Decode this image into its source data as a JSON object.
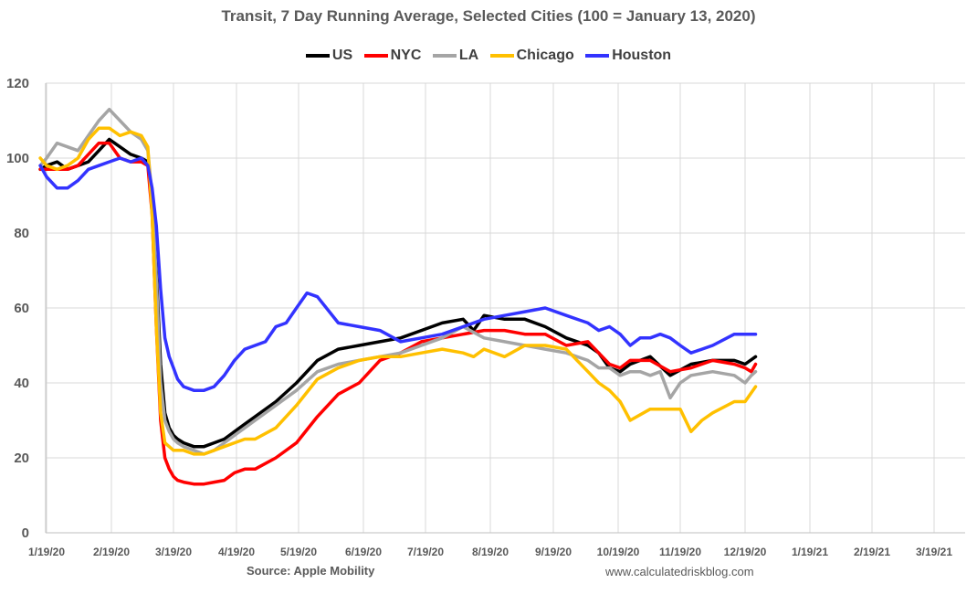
{
  "chart_data": {
    "type": "line",
    "title": "Transit, 7 Day Running Average, Selected Cities (100 = January 13, 2020)",
    "xlabel": "",
    "ylabel": "",
    "ylim": [
      0,
      120
    ],
    "yticks": [
      "0",
      "20",
      "40",
      "60",
      "80",
      "100",
      "120"
    ],
    "x_tick_labels": [
      "1/19/20",
      "2/19/20",
      "3/19/20",
      "4/19/20",
      "5/19/20",
      "6/19/20",
      "7/19/20",
      "8/19/20",
      "9/19/20",
      "10/19/20",
      "11/19/20",
      "12/19/20",
      "1/19/21",
      "2/19/21",
      "3/19/21"
    ],
    "grid": true,
    "legend_position": "top",
    "x_units": "days since 1/19/20",
    "series": [
      {
        "name": "US",
        "color": "#000000",
        "x": [
          -3,
          0,
          5,
          10,
          15,
          20,
          25,
          30,
          35,
          40,
          45,
          48,
          50,
          52,
          54,
          56,
          58,
          60,
          62,
          65,
          70,
          75,
          80,
          85,
          90,
          95,
          100,
          110,
          120,
          130,
          140,
          150,
          160,
          170,
          180,
          190,
          200,
          205,
          210,
          220,
          230,
          240,
          250,
          260,
          265,
          270,
          275,
          280,
          285,
          290,
          300,
          310,
          320,
          330,
          335,
          340
        ],
        "values": [
          97,
          98,
          99,
          97,
          98,
          99,
          102,
          105,
          103,
          101,
          100,
          99,
          90,
          70,
          45,
          32,
          28,
          26,
          25,
          24,
          23,
          23,
          24,
          25,
          27,
          29,
          31,
          35,
          40,
          46,
          49,
          50,
          51,
          52,
          54,
          56,
          57,
          54,
          58,
          57,
          57,
          55,
          52,
          50,
          48,
          44,
          43,
          45,
          46,
          47,
          42,
          45,
          46,
          46,
          45,
          47
        ]
      },
      {
        "name": "NYC",
        "color": "#ff0000",
        "x": [
          -3,
          0,
          5,
          10,
          15,
          20,
          25,
          30,
          35,
          40,
          45,
          48,
          50,
          52,
          54,
          56,
          58,
          60,
          62,
          65,
          70,
          75,
          80,
          85,
          90,
          95,
          100,
          110,
          120,
          130,
          140,
          150,
          160,
          170,
          180,
          190,
          200,
          210,
          220,
          230,
          240,
          250,
          260,
          265,
          270,
          275,
          280,
          285,
          290,
          300,
          310,
          320,
          330,
          335,
          338,
          340
        ],
        "values": [
          97,
          97,
          97,
          97,
          98,
          101,
          104,
          104,
          100,
          99,
          99,
          98,
          85,
          55,
          30,
          20,
          17,
          15,
          14,
          13.5,
          13,
          13,
          13.5,
          14,
          16,
          17,
          17,
          20,
          24,
          31,
          37,
          40,
          46,
          48,
          51,
          52,
          53,
          54,
          54,
          53,
          53,
          50,
          51,
          48,
          45,
          44,
          46,
          46,
          46,
          43,
          44,
          46,
          45,
          44,
          43,
          45
        ]
      },
      {
        "name": "LA",
        "color": "#a5a5a5",
        "x": [
          -3,
          0,
          5,
          10,
          15,
          20,
          25,
          30,
          35,
          40,
          45,
          48,
          50,
          52,
          54,
          56,
          58,
          60,
          62,
          65,
          70,
          75,
          80,
          85,
          90,
          95,
          100,
          110,
          120,
          130,
          140,
          150,
          160,
          170,
          180,
          190,
          200,
          210,
          220,
          230,
          240,
          250,
          260,
          265,
          270,
          275,
          280,
          285,
          290,
          295,
          300,
          305,
          310,
          320,
          330,
          335,
          338,
          340
        ],
        "values": [
          98,
          100,
          104,
          103,
          102,
          106,
          110,
          113,
          110,
          107,
          105,
          102,
          90,
          68,
          40,
          30,
          27,
          25,
          24,
          23,
          22,
          21,
          22,
          24,
          26,
          28,
          30,
          34,
          38,
          43,
          45,
          46,
          47,
          48,
          50,
          52,
          55,
          52,
          51,
          50,
          49,
          48,
          46,
          44,
          44,
          42,
          43,
          43,
          42,
          43,
          36,
          40,
          42,
          43,
          42,
          40,
          42,
          43
        ]
      },
      {
        "name": "Chicago",
        "color": "#ffc000",
        "x": [
          -3,
          0,
          5,
          10,
          15,
          20,
          25,
          30,
          35,
          40,
          45,
          48,
          50,
          52,
          54,
          56,
          58,
          60,
          62,
          65,
          70,
          75,
          80,
          85,
          90,
          95,
          100,
          110,
          120,
          130,
          140,
          150,
          160,
          170,
          180,
          190,
          200,
          205,
          210,
          220,
          230,
          240,
          250,
          255,
          260,
          265,
          270,
          275,
          280,
          290,
          300,
          305,
          310,
          315,
          320,
          330,
          335,
          340
        ],
        "values": [
          100,
          98,
          97,
          98,
          100,
          105,
          108,
          108,
          106,
          107,
          106,
          103,
          85,
          55,
          32,
          24,
          23,
          22,
          22,
          22,
          21,
          21,
          22,
          23,
          24,
          25,
          25,
          28,
          34,
          41,
          44,
          46,
          47,
          47,
          48,
          49,
          48,
          47,
          49,
          47,
          50,
          50,
          49,
          46,
          43,
          40,
          38,
          35,
          30,
          33,
          33,
          33,
          27,
          30,
          32,
          35,
          35,
          39
        ]
      },
      {
        "name": "Houston",
        "color": "#3333ff",
        "x": [
          -3,
          0,
          5,
          10,
          15,
          20,
          25,
          30,
          35,
          40,
          45,
          48,
          50,
          52,
          54,
          56,
          58,
          60,
          62,
          65,
          70,
          75,
          80,
          85,
          90,
          95,
          100,
          105,
          110,
          115,
          120,
          125,
          130,
          140,
          150,
          160,
          170,
          180,
          190,
          200,
          210,
          220,
          230,
          240,
          250,
          260,
          265,
          270,
          275,
          280,
          285,
          290,
          295,
          300,
          305,
          310,
          315,
          320,
          330,
          335,
          340
        ],
        "values": [
          98,
          95,
          92,
          92,
          94,
          97,
          98,
          99,
          100,
          99,
          100,
          98,
          92,
          82,
          65,
          52,
          47,
          44,
          41,
          39,
          38,
          38,
          39,
          42,
          46,
          49,
          50,
          51,
          55,
          56,
          60,
          64,
          63,
          56,
          55,
          54,
          51,
          52,
          53,
          55,
          57,
          58,
          59,
          60,
          58,
          56,
          54,
          55,
          53,
          50,
          52,
          52,
          53,
          52,
          50,
          48,
          49,
          50,
          53,
          53,
          53
        ]
      }
    ]
  },
  "footer": {
    "source": "Source: Apple Mobility",
    "website": "www.calculatedriskblog.com"
  }
}
